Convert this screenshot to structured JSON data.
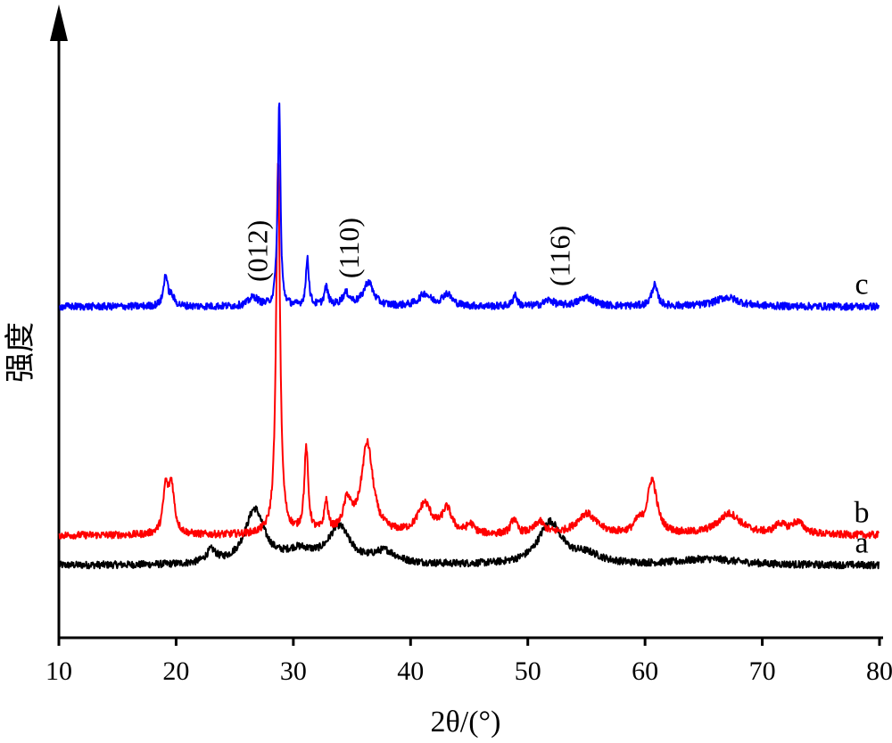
{
  "chart_data": {
    "type": "line",
    "xlabel": "2θ/(°)",
    "ylabel": "强度",
    "xlim": [
      10,
      80
    ],
    "x_ticks": [
      10,
      20,
      30,
      40,
      50,
      60,
      70,
      80
    ],
    "y_ticks_shown": false,
    "grid": false,
    "legend": "none",
    "series": [
      {
        "name": "a",
        "color": "#000000",
        "baseline_intensity": 0.12,
        "peaks": [
          {
            "x": 23.0,
            "height": 0.02,
            "width": 0.5
          },
          {
            "x": 26.7,
            "height": 0.09,
            "width": 1.0
          },
          {
            "x": 30.5,
            "height": 0.02,
            "width": 1.5
          },
          {
            "x": 33.9,
            "height": 0.06,
            "width": 1.1
          },
          {
            "x": 37.8,
            "height": 0.02,
            "width": 1.2
          },
          {
            "x": 51.9,
            "height": 0.07,
            "width": 1.2
          },
          {
            "x": 55.0,
            "height": 0.015,
            "width": 1.5
          },
          {
            "x": 65.5,
            "height": 0.01,
            "width": 3.0
          }
        ]
      },
      {
        "name": "b",
        "color": "#ff0000",
        "baseline_intensity": 0.17,
        "peaks": [
          {
            "x": 19.1,
            "height": 0.07,
            "width": 0.25
          },
          {
            "x": 19.6,
            "height": 0.08,
            "width": 0.3
          },
          {
            "x": 28.7,
            "height": 0.62,
            "width": 0.2
          },
          {
            "x": 31.1,
            "height": 0.14,
            "width": 0.2
          },
          {
            "x": 32.8,
            "height": 0.05,
            "width": 0.2
          },
          {
            "x": 34.6,
            "height": 0.05,
            "width": 0.4
          },
          {
            "x": 36.3,
            "height": 0.15,
            "width": 0.6
          },
          {
            "x": 41.2,
            "height": 0.05,
            "width": 0.7
          },
          {
            "x": 43.1,
            "height": 0.04,
            "width": 0.5
          },
          {
            "x": 45.1,
            "height": 0.015,
            "width": 0.4
          },
          {
            "x": 48.8,
            "height": 0.025,
            "width": 0.3
          },
          {
            "x": 51.0,
            "height": 0.02,
            "width": 0.5
          },
          {
            "x": 55.0,
            "height": 0.035,
            "width": 1.0
          },
          {
            "x": 59.4,
            "height": 0.015,
            "width": 0.4
          },
          {
            "x": 60.6,
            "height": 0.09,
            "width": 0.5
          },
          {
            "x": 67.2,
            "height": 0.035,
            "width": 1.2
          },
          {
            "x": 71.5,
            "height": 0.015,
            "width": 0.5
          },
          {
            "x": 73.0,
            "height": 0.02,
            "width": 0.7
          }
        ]
      },
      {
        "name": "c",
        "color": "#0000ff",
        "baseline_intensity": 0.55,
        "peaks": [
          {
            "x": 19.1,
            "height": 0.05,
            "width": 0.2
          },
          {
            "x": 19.6,
            "height": 0.015,
            "width": 0.3
          },
          {
            "x": 26.6,
            "height": 0.015,
            "width": 0.5
          },
          {
            "x": 28.8,
            "height": 0.33,
            "width": 0.12
          },
          {
            "x": 28.6,
            "height": 0.04,
            "width": 0.15
          },
          {
            "x": 31.2,
            "height": 0.08,
            "width": 0.15
          },
          {
            "x": 32.8,
            "height": 0.03,
            "width": 0.2
          },
          {
            "x": 34.5,
            "height": 0.02,
            "width": 0.4
          },
          {
            "x": 36.4,
            "height": 0.04,
            "width": 0.5
          },
          {
            "x": 41.2,
            "height": 0.02,
            "width": 0.6
          },
          {
            "x": 43.1,
            "height": 0.02,
            "width": 0.5
          },
          {
            "x": 48.9,
            "height": 0.02,
            "width": 0.2
          },
          {
            "x": 51.8,
            "height": 0.01,
            "width": 0.5
          },
          {
            "x": 55.0,
            "height": 0.015,
            "width": 0.8
          },
          {
            "x": 60.8,
            "height": 0.035,
            "width": 0.3
          },
          {
            "x": 67.0,
            "height": 0.015,
            "width": 1.2
          }
        ]
      }
    ],
    "annotations": [
      {
        "text": "(012)",
        "x": 27.0
      },
      {
        "text": "(110)",
        "x": 34.8
      },
      {
        "text": "(116)",
        "x": 52.8
      }
    ]
  }
}
